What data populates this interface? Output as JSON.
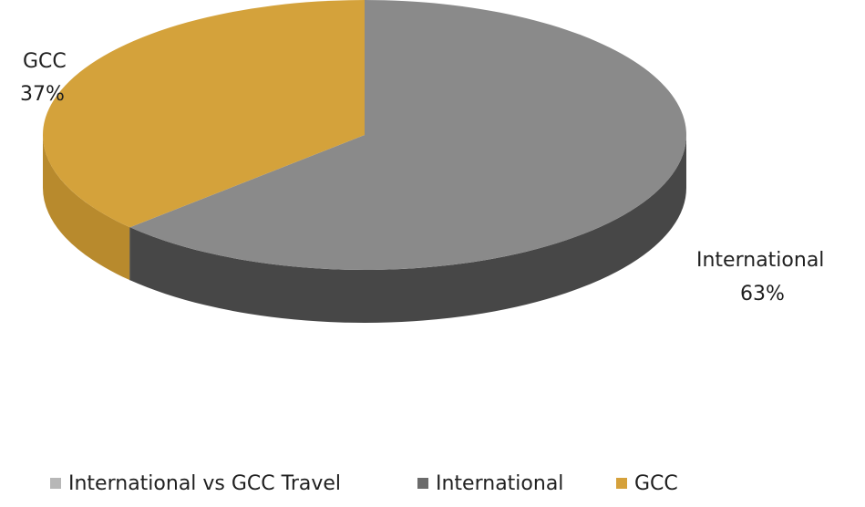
{
  "chart_data": {
    "type": "pie",
    "title": "",
    "legend": {
      "position": "bottom",
      "entries": [
        {
          "label": "International vs GCC Travel",
          "color": "#b7b7b7"
        },
        {
          "label": "International",
          "color": "#6b6b6b"
        },
        {
          "label": "GCC",
          "color": "#d5a13b"
        }
      ]
    },
    "slices": [
      {
        "name": "International",
        "value": 63,
        "label": "International",
        "percent_label": "63%",
        "top_color": "#8a8a8a",
        "side_color": "#474747"
      },
      {
        "name": "GCC",
        "value": 37,
        "label": "GCC",
        "percent_label": "37%",
        "top_color": "#d4a23b",
        "side_color": "#b88a2d"
      }
    ]
  }
}
